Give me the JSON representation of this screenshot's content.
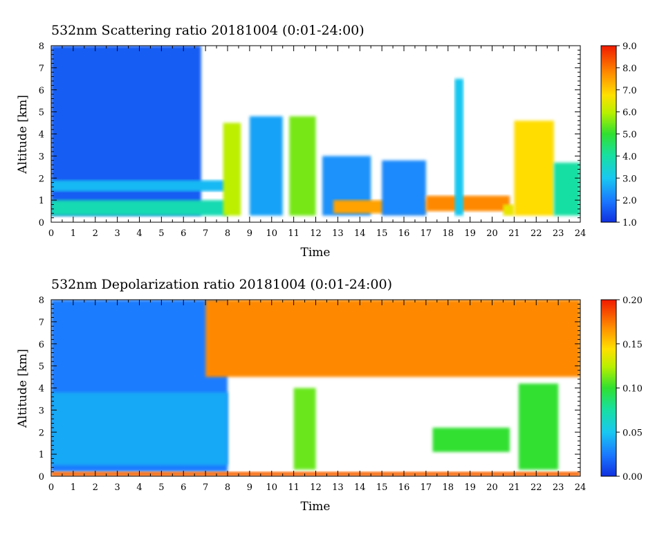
{
  "chart_data": [
    {
      "type": "heatmap",
      "title": "532nm Scattering ratio  20181004 (0:01-24:00)",
      "xlabel": "Time",
      "ylabel": "Altitude [km]",
      "xlim": [
        0,
        24
      ],
      "ylim": [
        0,
        8
      ],
      "x_ticks": [
        "0",
        "1",
        "2",
        "3",
        "4",
        "5",
        "6",
        "7",
        "8",
        "9",
        "10",
        "11",
        "12",
        "13",
        "14",
        "15",
        "16",
        "17",
        "18",
        "19",
        "20",
        "21",
        "22",
        "23",
        "24"
      ],
      "y_ticks": [
        "0",
        "1",
        "2",
        "3",
        "4",
        "5",
        "6",
        "7",
        "8"
      ],
      "colorbar": {
        "min": 1.0,
        "max": 9.0,
        "ticks": [
          "1.0",
          "2.0",
          "3.0",
          "4.0",
          "5.0",
          "6.0",
          "7.0",
          "8.0",
          "9.0"
        ]
      },
      "regions": [
        {
          "t0": 0,
          "t1": 6.8,
          "z0": 0.3,
          "z1": 8,
          "value": 1.6
        },
        {
          "t0": 0,
          "t1": 8.0,
          "z0": 0.3,
          "z1": 1.0,
          "value": 3.8
        },
        {
          "t0": 0,
          "t1": 8.0,
          "z0": 1.4,
          "z1": 1.9,
          "value": 2.8
        },
        {
          "t0": 7.8,
          "t1": 8.6,
          "z0": 0.3,
          "z1": 4.5,
          "value": 6.0
        },
        {
          "t0": 9.0,
          "t1": 10.5,
          "z0": 0.3,
          "z1": 4.8,
          "value": 2.5
        },
        {
          "t0": 10.8,
          "t1": 12.0,
          "z0": 0.3,
          "z1": 4.8,
          "value": 5.5
        },
        {
          "t0": 12.3,
          "t1": 14.5,
          "z0": 0.3,
          "z1": 3.0,
          "value": 2.3
        },
        {
          "t0": 12.8,
          "t1": 17.0,
          "z0": 0.4,
          "z1": 1.0,
          "value": 7.5
        },
        {
          "t0": 15.0,
          "t1": 17.0,
          "z0": 0.3,
          "z1": 2.8,
          "value": 2.2
        },
        {
          "t0": 17.0,
          "t1": 20.8,
          "z0": 0.5,
          "z1": 1.2,
          "value": 7.8
        },
        {
          "t0": 18.3,
          "t1": 18.7,
          "z0": 0.3,
          "z1": 6.5,
          "value": 3.0
        },
        {
          "t0": 20.5,
          "t1": 21.0,
          "z0": 0.3,
          "z1": 0.8,
          "value": 6.5
        },
        {
          "t0": 21.0,
          "t1": 22.8,
          "z0": 0.3,
          "z1": 4.6,
          "value": 6.8
        },
        {
          "t0": 22.8,
          "t1": 24.0,
          "z0": 0.3,
          "z1": 2.7,
          "value": 4.0
        }
      ]
    },
    {
      "type": "heatmap",
      "title": "532nm Depolarization ratio  20181004 (0:01-24:00)",
      "xlabel": "Time",
      "ylabel": "Altitude [km]",
      "xlim": [
        0,
        24
      ],
      "ylim": [
        0,
        8
      ],
      "x_ticks": [
        "0",
        "1",
        "2",
        "3",
        "4",
        "5",
        "6",
        "7",
        "8",
        "9",
        "10",
        "11",
        "12",
        "13",
        "14",
        "15",
        "16",
        "17",
        "18",
        "19",
        "20",
        "21",
        "22",
        "23",
        "24"
      ],
      "y_ticks": [
        "0",
        "1",
        "2",
        "3",
        "4",
        "5",
        "6",
        "7",
        "8"
      ],
      "colorbar": {
        "min": 0.0,
        "max": 0.2,
        "ticks": [
          "0.00",
          "0.05",
          "0.10",
          "0.15",
          "0.20"
        ]
      },
      "regions": [
        {
          "t0": 0,
          "t1": 8.0,
          "z0": 0.2,
          "z1": 8,
          "value": 0.025
        },
        {
          "t0": 0,
          "t1": 8.0,
          "z0": 0.5,
          "z1": 3.8,
          "value": 0.04
        },
        {
          "t0": 7.0,
          "t1": 24.0,
          "z0": 4.5,
          "z1": 8,
          "value": 0.17
        },
        {
          "t0": 11.0,
          "t1": 12.0,
          "z0": 0.3,
          "z1": 4.0,
          "value": 0.11
        },
        {
          "t0": 17.3,
          "t1": 20.8,
          "z0": 1.1,
          "z1": 2.2,
          "value": 0.1
        },
        {
          "t0": 21.2,
          "t1": 23.0,
          "z0": 0.3,
          "z1": 4.2,
          "value": 0.1
        },
        {
          "t0": 0,
          "t1": 24.0,
          "z0": 0.0,
          "z1": 0.2,
          "value": 0.18
        }
      ]
    }
  ]
}
